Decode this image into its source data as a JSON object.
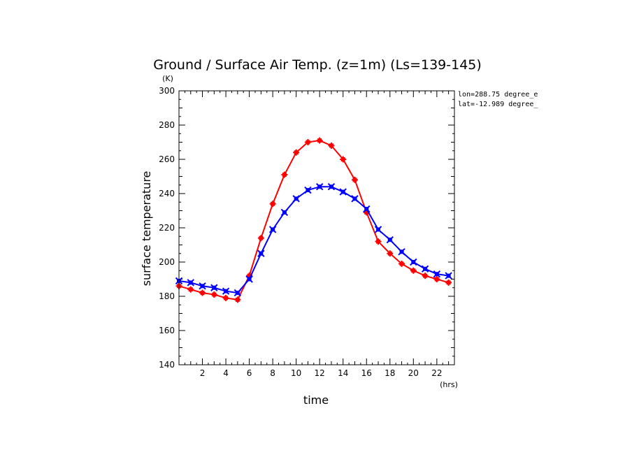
{
  "chart_data": {
    "type": "line",
    "title": "Ground / Surface Air Temp. (z=1m) (Ls=139-145)",
    "xlabel": "time",
    "ylabel": "surface temperature",
    "x_unit": "(hrs)",
    "y_unit": "(K)",
    "xlim": [
      0,
      23.5
    ],
    "ylim": [
      140,
      300
    ],
    "xticks": [
      2,
      4,
      6,
      8,
      10,
      12,
      14,
      16,
      18,
      20,
      22
    ],
    "yticks": [
      140,
      160,
      180,
      200,
      220,
      240,
      260,
      280,
      300
    ],
    "annotations": [
      "lon=288.75 degree_e",
      "lat=-12.989 degree_"
    ],
    "x": [
      0,
      1,
      2,
      3,
      4,
      5,
      6,
      7,
      8,
      9,
      10,
      11,
      12,
      13,
      14,
      15,
      16,
      17,
      18,
      19,
      20,
      21,
      22,
      23
    ],
    "series": [
      {
        "color": "#ff0000",
        "marker": "plus",
        "values": [
          186,
          184,
          182,
          181,
          179,
          178,
          192,
          214,
          234,
          251,
          264,
          270,
          271,
          268,
          260,
          248,
          229,
          212,
          205,
          199,
          195,
          192,
          190,
          188
        ]
      },
      {
        "color": "#0000ff",
        "marker": "cross",
        "values": [
          189,
          188,
          186,
          185,
          183,
          182,
          190,
          205,
          219,
          229,
          237,
          242,
          244,
          244,
          241,
          237,
          231,
          219,
          213,
          206,
          200,
          196,
          193,
          192
        ]
      }
    ]
  }
}
